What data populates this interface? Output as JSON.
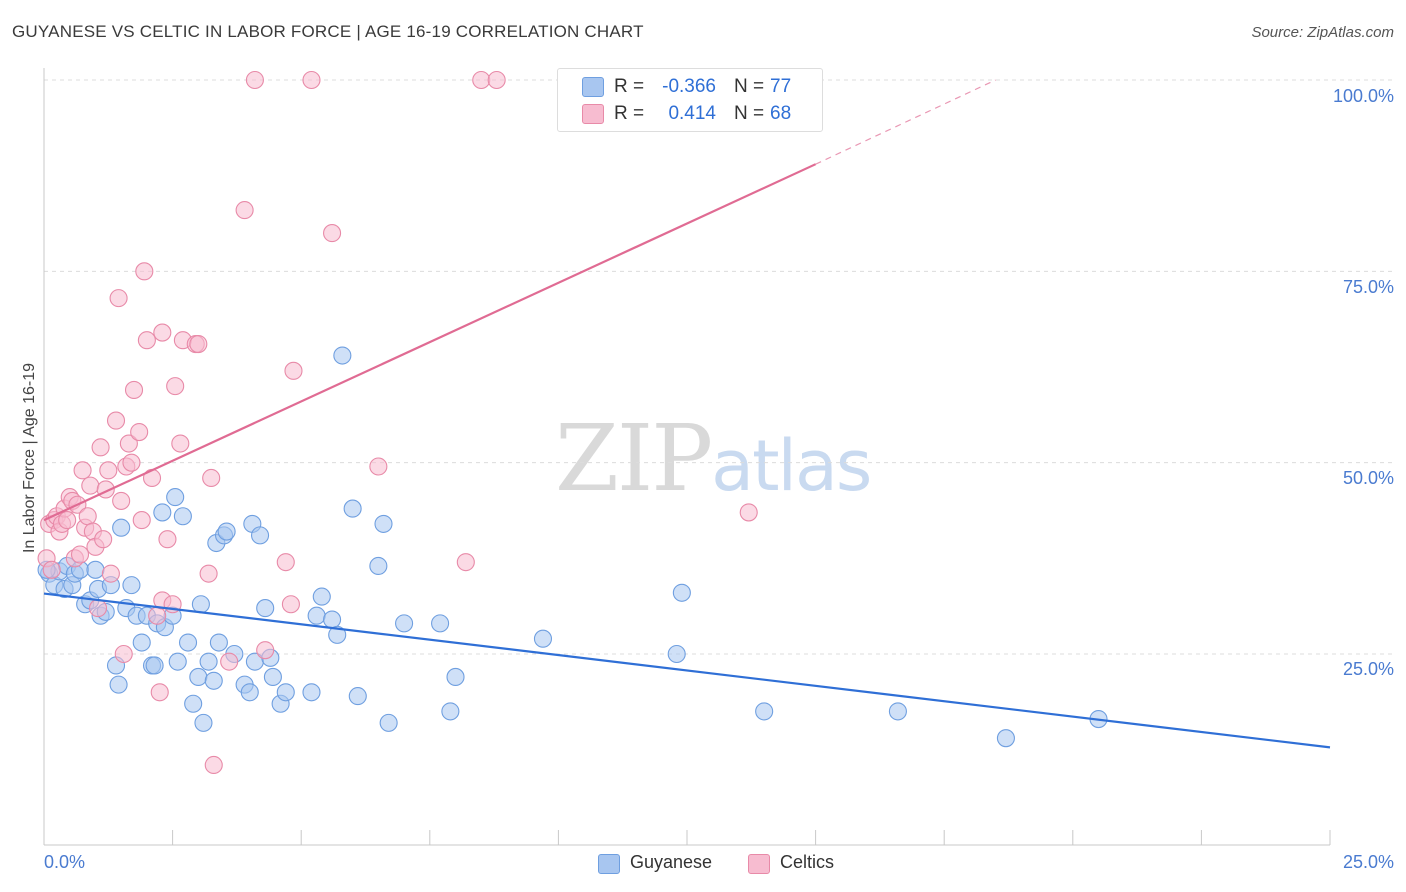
{
  "title": "GUYANESE VS CELTIC IN LABOR FORCE | AGE 16-19 CORRELATION CHART",
  "source": "Source: ZipAtlas.com",
  "watermark": {
    "zip": "ZIP",
    "atlas": "atlas"
  },
  "legend": {
    "rows": [
      {
        "r_label": "R =",
        "r_value": "-0.366",
        "n_label": "N =",
        "n_value": "77",
        "color": "#a8c6f0",
        "border": "#6f9fe0"
      },
      {
        "r_label": "R =",
        "r_value": "0.414",
        "n_label": "N =",
        "n_value": "68",
        "color": "#f7bcd0",
        "border": "#e88aa8"
      }
    ]
  },
  "bottom_legend": [
    {
      "label": "Guyanese",
      "color": "#a8c6f0",
      "border": "#6f9fe0"
    },
    {
      "label": "Celtics",
      "color": "#f7bcd0",
      "border": "#e88aa8"
    }
  ],
  "chart_data": {
    "type": "scatter",
    "title": "GUYANESE VS CELTIC IN LABOR FORCE | AGE 16-19 CORRELATION CHART",
    "xlabel": "",
    "ylabel": "In Labor Force | Age 16-19",
    "xlim": [
      0,
      25
    ],
    "ylim": [
      0,
      105
    ],
    "x_tick_labels": [
      "0.0%",
      "25.0%"
    ],
    "y_ticks": [
      25,
      50,
      75,
      100
    ],
    "y_tick_labels": [
      "25.0%",
      "50.0%",
      "75.0%",
      "100.0%"
    ],
    "grid": true,
    "series": [
      {
        "name": "Guyanese",
        "color": "#6f9fe0",
        "fill": "#a8c6f0",
        "trend": {
          "x": [
            0,
            25
          ],
          "y": [
            32.9,
            12.8
          ],
          "color": "#2f6fd6"
        },
        "points": [
          [
            0.1,
            35.5
          ],
          [
            0.2,
            34.0
          ],
          [
            0.3,
            35.8
          ],
          [
            0.4,
            33.5
          ],
          [
            0.45,
            36.5
          ],
          [
            0.55,
            34.0
          ],
          [
            0.6,
            35.5
          ],
          [
            0.7,
            36.0
          ],
          [
            0.8,
            31.5
          ],
          [
            0.9,
            32.0
          ],
          [
            1.0,
            36.0
          ],
          [
            1.05,
            33.5
          ],
          [
            1.1,
            30.0
          ],
          [
            1.2,
            30.5
          ],
          [
            1.3,
            34.0
          ],
          [
            1.4,
            23.5
          ],
          [
            1.45,
            21.0
          ],
          [
            1.5,
            41.5
          ],
          [
            1.6,
            31.0
          ],
          [
            1.7,
            34.0
          ],
          [
            1.8,
            30.0
          ],
          [
            1.9,
            26.5
          ],
          [
            2.0,
            30.0
          ],
          [
            2.1,
            23.5
          ],
          [
            2.15,
            23.5
          ],
          [
            2.2,
            29.0
          ],
          [
            2.3,
            43.5
          ],
          [
            2.35,
            28.5
          ],
          [
            2.5,
            30.0
          ],
          [
            2.55,
            45.5
          ],
          [
            2.6,
            24.0
          ],
          [
            2.7,
            43.0
          ],
          [
            2.8,
            26.5
          ],
          [
            2.9,
            18.5
          ],
          [
            3.0,
            22.0
          ],
          [
            3.05,
            31.5
          ],
          [
            3.1,
            16.0
          ],
          [
            3.2,
            24.0
          ],
          [
            3.3,
            21.5
          ],
          [
            3.35,
            39.5
          ],
          [
            3.4,
            26.5
          ],
          [
            3.5,
            40.5
          ],
          [
            3.55,
            41.0
          ],
          [
            3.7,
            25.0
          ],
          [
            3.9,
            21.0
          ],
          [
            4.0,
            20.0
          ],
          [
            4.05,
            42.0
          ],
          [
            4.1,
            24.0
          ],
          [
            4.2,
            40.5
          ],
          [
            4.3,
            31.0
          ],
          [
            4.4,
            24.5
          ],
          [
            4.45,
            22.0
          ],
          [
            4.6,
            18.5
          ],
          [
            4.7,
            20.0
          ],
          [
            5.2,
            20.0
          ],
          [
            5.3,
            30.0
          ],
          [
            5.4,
            32.5
          ],
          [
            5.6,
            29.5
          ],
          [
            5.7,
            27.5
          ],
          [
            5.8,
            64.0
          ],
          [
            6.0,
            44.0
          ],
          [
            6.1,
            19.5
          ],
          [
            6.5,
            36.5
          ],
          [
            6.6,
            42.0
          ],
          [
            6.7,
            16.0
          ],
          [
            7.0,
            29.0
          ],
          [
            7.7,
            29.0
          ],
          [
            7.9,
            17.5
          ],
          [
            8.0,
            22.0
          ],
          [
            9.7,
            27.0
          ],
          [
            12.3,
            25.0
          ],
          [
            12.4,
            33.0
          ],
          [
            14.0,
            17.5
          ],
          [
            16.6,
            17.5
          ],
          [
            18.7,
            14.0
          ],
          [
            20.5,
            16.5
          ],
          [
            0.05,
            36.0
          ]
        ]
      },
      {
        "name": "Celtics",
        "color": "#e88aa8",
        "fill": "#f7bcd0",
        "trend": {
          "x": [
            0,
            15
          ],
          "y": [
            42.5,
            89.0
          ],
          "dashed_to": [
            18.5,
            100
          ],
          "color": "#e06b93"
        },
        "points": [
          [
            0.05,
            37.5
          ],
          [
            0.1,
            42.0
          ],
          [
            0.15,
            36.0
          ],
          [
            0.2,
            42.5
          ],
          [
            0.25,
            43.0
          ],
          [
            0.3,
            41.0
          ],
          [
            0.35,
            42.0
          ],
          [
            0.4,
            44.0
          ],
          [
            0.45,
            42.5
          ],
          [
            0.5,
            45.5
          ],
          [
            0.55,
            45.0
          ],
          [
            0.6,
            37.5
          ],
          [
            0.65,
            44.5
          ],
          [
            0.7,
            38.0
          ],
          [
            0.75,
            49.0
          ],
          [
            0.8,
            41.5
          ],
          [
            0.85,
            43.0
          ],
          [
            0.9,
            47.0
          ],
          [
            0.95,
            41.0
          ],
          [
            1.0,
            39.0
          ],
          [
            1.05,
            31.0
          ],
          [
            1.1,
            52.0
          ],
          [
            1.15,
            40.0
          ],
          [
            1.2,
            46.5
          ],
          [
            1.25,
            49.0
          ],
          [
            1.3,
            35.5
          ],
          [
            1.4,
            55.5
          ],
          [
            1.45,
            71.5
          ],
          [
            1.5,
            45.0
          ],
          [
            1.55,
            25.0
          ],
          [
            1.6,
            49.5
          ],
          [
            1.65,
            52.5
          ],
          [
            1.7,
            50.0
          ],
          [
            1.75,
            59.5
          ],
          [
            1.85,
            54.0
          ],
          [
            1.9,
            42.5
          ],
          [
            1.95,
            75.0
          ],
          [
            2.0,
            66.0
          ],
          [
            2.1,
            48.0
          ],
          [
            2.2,
            30.0
          ],
          [
            2.25,
            20.0
          ],
          [
            2.3,
            32.0
          ],
          [
            2.3,
            67.0
          ],
          [
            2.4,
            40.0
          ],
          [
            2.5,
            31.5
          ],
          [
            2.55,
            60.0
          ],
          [
            2.65,
            52.5
          ],
          [
            2.7,
            66.0
          ],
          [
            2.95,
            65.5
          ],
          [
            3.0,
            65.5
          ],
          [
            3.2,
            35.5
          ],
          [
            3.25,
            48.0
          ],
          [
            3.3,
            10.5
          ],
          [
            3.6,
            24.0
          ],
          [
            3.9,
            83.0
          ],
          [
            4.1,
            100.0
          ],
          [
            4.3,
            25.5
          ],
          [
            4.7,
            37.0
          ],
          [
            4.8,
            31.5
          ],
          [
            4.85,
            62.0
          ],
          [
            5.2,
            100.0
          ],
          [
            5.6,
            80.0
          ],
          [
            6.5,
            49.5
          ],
          [
            8.2,
            37.0
          ],
          [
            8.5,
            100.0
          ],
          [
            8.8,
            100.0
          ],
          [
            10.3,
            100.0
          ],
          [
            13.7,
            43.5
          ]
        ]
      }
    ]
  }
}
